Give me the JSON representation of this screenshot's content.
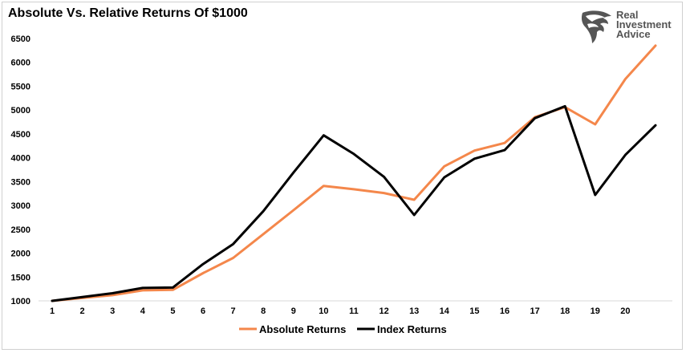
{
  "chart_data": {
    "type": "line",
    "title": "Absolute Vs. Relative Returns Of $1000",
    "xlabel": "",
    "ylabel": "",
    "categories": [
      "1",
      "2",
      "3",
      "4",
      "5",
      "6",
      "7",
      "8",
      "9",
      "10",
      "11",
      "12",
      "13",
      "14",
      "15",
      "16",
      "17",
      "18",
      "19",
      "20",
      ""
    ],
    "x": [
      1,
      2,
      3,
      4,
      5,
      6,
      7,
      8,
      9,
      10,
      11,
      12,
      13,
      14,
      15,
      16,
      17,
      18,
      19,
      20,
      21
    ],
    "ylim": [
      1000,
      6500
    ],
    "yticks": [
      1000,
      1500,
      2000,
      2500,
      3000,
      3500,
      4000,
      4500,
      5000,
      5500,
      6000,
      6500
    ],
    "grid": false,
    "legend_position": "bottom",
    "series": [
      {
        "name": "Absolute Returns",
        "color": "#f4874b",
        "values": [
          1000,
          1060,
          1120,
          1220,
          1230,
          1580,
          1900,
          2400,
          2900,
          3410,
          3340,
          3260,
          3120,
          3820,
          4150,
          4310,
          4850,
          5060,
          4700,
          5650,
          6350
        ]
      },
      {
        "name": "Index Returns",
        "color": "#000000",
        "values": [
          1000,
          1080,
          1160,
          1270,
          1280,
          1770,
          2190,
          2880,
          3690,
          4470,
          4080,
          3600,
          2800,
          3590,
          3980,
          4160,
          4830,
          5080,
          3220,
          4060,
          4680
        ]
      }
    ]
  },
  "logo": {
    "line1": "Real",
    "line2": "Investment",
    "line3": "Advice",
    "icon": "eagle-head-icon",
    "color": "#555555"
  }
}
